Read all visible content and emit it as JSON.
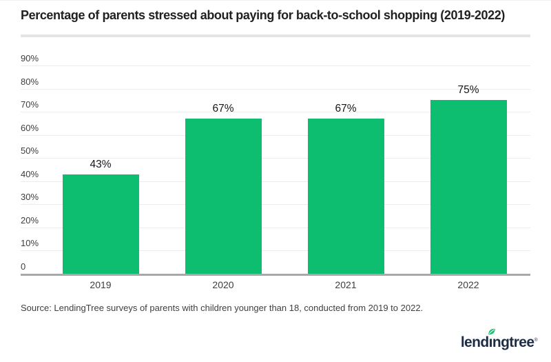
{
  "title": "Percentage of parents stressed about paying for back-to-school shopping (2019-2022)",
  "source": "Source: LendingTree surveys of parents with children younger than 18, conducted from 2019 to 2022.",
  "logo": {
    "brand": "lendingtree",
    "trademark": "®"
  },
  "colors": {
    "bar_green": "#0dbe70",
    "leaf_green": "#1fbe72",
    "logo_navy": "#1c2c44",
    "title_text": "#212121",
    "tick_text": "#3d3d3d",
    "value_text": "#161616",
    "source_text": "#3f3f3f",
    "gridline": "#ececec",
    "axis_line": "#a8a8a8",
    "divider": "#e4e4e4",
    "background": "#ffffff"
  },
  "chart_data": {
    "type": "bar",
    "title": "Percentage of parents stressed about paying for back-to-school shopping (2019-2022)",
    "categories": [
      "2019",
      "2020",
      "2021",
      "2022"
    ],
    "values": [
      43,
      67,
      67,
      75
    ],
    "bar_labels": [
      "43%",
      "67%",
      "67%",
      "75%"
    ],
    "xlabel": "",
    "ylabel": "",
    "ylim": [
      0,
      90
    ],
    "ytick_step": 10,
    "ytick_labels": [
      "90%",
      "80%",
      "70%",
      "60%",
      "50%",
      "40%",
      "30%",
      "20%",
      "10%",
      "0"
    ],
    "grid": true,
    "legend": false,
    "bar_color": "#0dbe70"
  }
}
